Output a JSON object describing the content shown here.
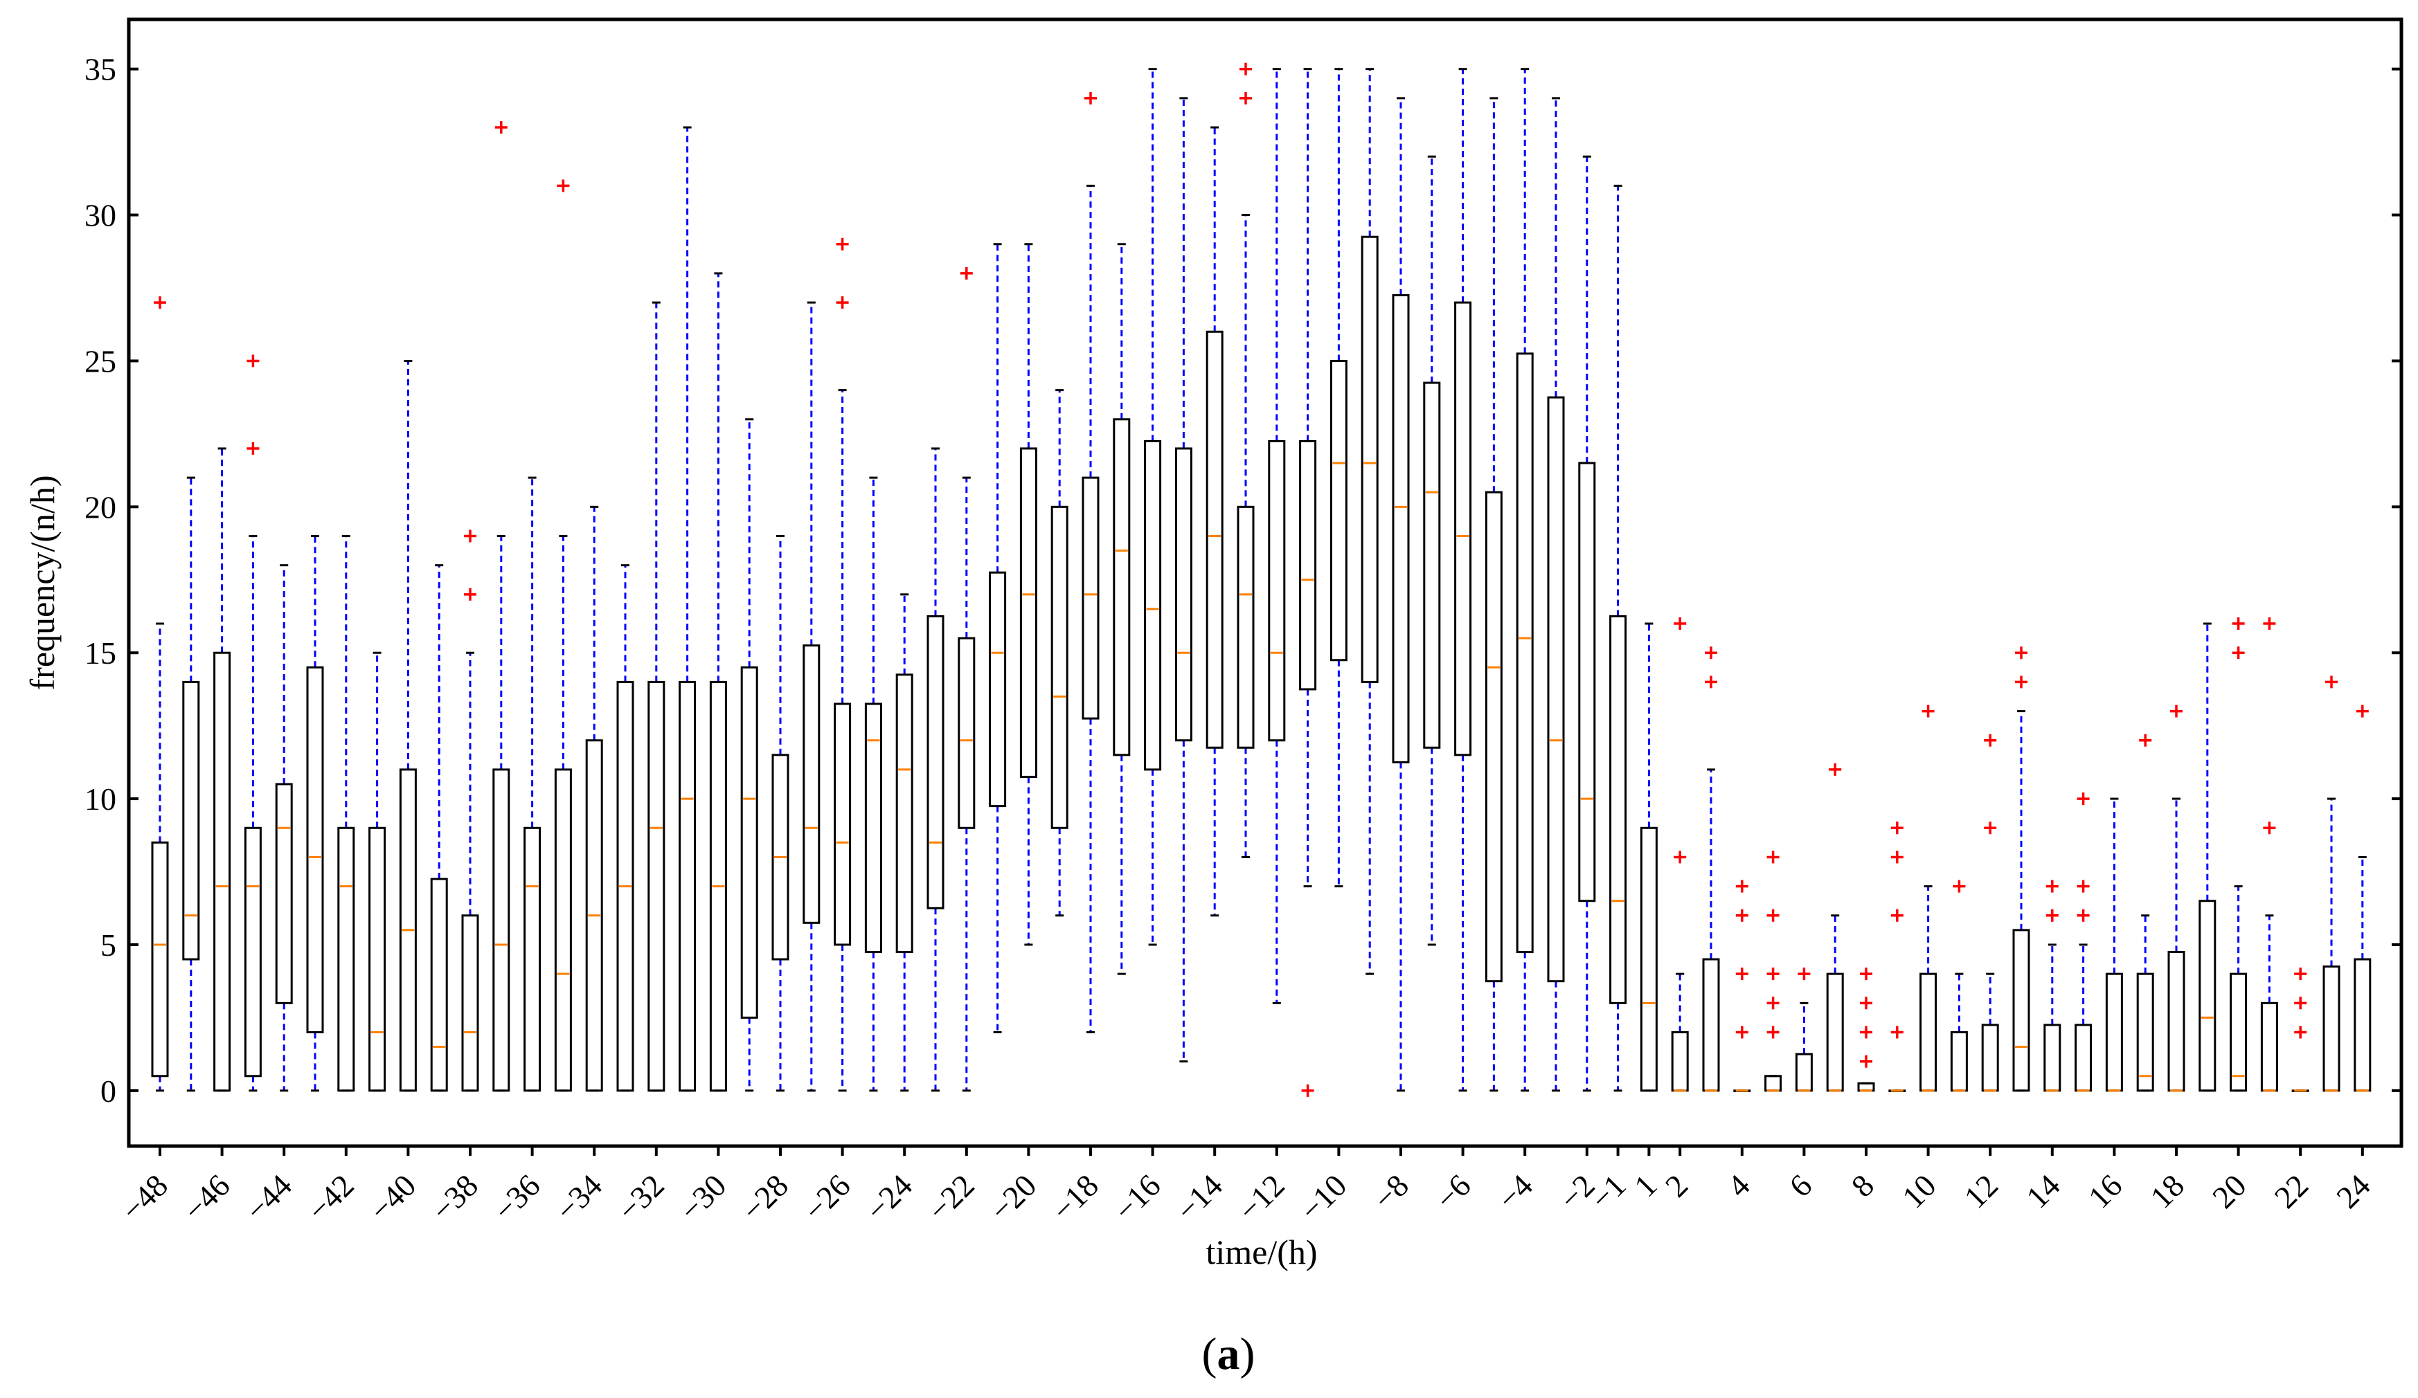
{
  "panel_label": {
    "open": "(",
    "letter": "a",
    "close": ")"
  },
  "chart_data": {
    "type": "box",
    "xlabel": "time/(h)",
    "ylabel": "frequency/(n/h)",
    "ylim": [
      -1.9,
      36.7
    ],
    "yticks": [
      0,
      5,
      10,
      15,
      20,
      25,
      30,
      35
    ],
    "xtick_labels": [
      "−48",
      "−46",
      "−44",
      "−42",
      "−40",
      "−38",
      "−36",
      "−34",
      "−32",
      "−30",
      "−28",
      "−26",
      "−24",
      "−22",
      "−20",
      "−18",
      "−16",
      "−14",
      "−12",
      "−10",
      "−8",
      "−6",
      "−4",
      "−2",
      "−1",
      "1",
      "2",
      "4",
      "6",
      "8",
      "10",
      "12",
      "14",
      "16",
      "18",
      "20",
      "22",
      "24"
    ],
    "xtick_times": [
      -48,
      -46,
      -44,
      -42,
      -40,
      -38,
      -36,
      -34,
      -32,
      -30,
      -28,
      -26,
      -24,
      -22,
      -20,
      -18,
      -16,
      -14,
      -12,
      -10,
      -8,
      -6,
      -4,
      -2,
      -1,
      1,
      2,
      4,
      6,
      8,
      10,
      12,
      14,
      16,
      18,
      20,
      22,
      24
    ],
    "colors": {
      "box": "#000000",
      "whisker": "#0000ff",
      "median": "#ff8000",
      "outlier": "#ff0000"
    },
    "boxes": [
      {
        "time": -48,
        "q1": 0.5,
        "median": 5,
        "q3": 8.5,
        "whisker_low": 0,
        "whisker_high": 16,
        "outliers": [
          27
        ]
      },
      {
        "time": -47,
        "q1": 4.5,
        "median": 6,
        "q3": 14,
        "whisker_low": 0,
        "whisker_high": 21,
        "outliers": []
      },
      {
        "time": -46,
        "q1": 0,
        "median": 7,
        "q3": 15,
        "whisker_low": 0,
        "whisker_high": 22,
        "outliers": []
      },
      {
        "time": -45,
        "q1": 0.5,
        "median": 7,
        "q3": 9,
        "whisker_low": 0,
        "whisker_high": 19,
        "outliers": [
          22,
          25
        ]
      },
      {
        "time": -44,
        "q1": 3,
        "median": 9,
        "q3": 10.5,
        "whisker_low": 0,
        "whisker_high": 18,
        "outliers": []
      },
      {
        "time": -43,
        "q1": 2,
        "median": 8,
        "q3": 14.5,
        "whisker_low": 0,
        "whisker_high": 19,
        "outliers": []
      },
      {
        "time": -42,
        "q1": 0,
        "median": 7,
        "q3": 9,
        "whisker_low": 0,
        "whisker_high": 19,
        "outliers": []
      },
      {
        "time": -41,
        "q1": 0,
        "median": 2,
        "q3": 9,
        "whisker_low": 0,
        "whisker_high": 15,
        "outliers": []
      },
      {
        "time": -40,
        "q1": 0,
        "median": 5.5,
        "q3": 11,
        "whisker_low": 0,
        "whisker_high": 25,
        "outliers": []
      },
      {
        "time": -39,
        "q1": 0,
        "median": 1.5,
        "q3": 7.25,
        "whisker_low": 0,
        "whisker_high": 18,
        "outliers": []
      },
      {
        "time": -38,
        "q1": 0,
        "median": 2,
        "q3": 6,
        "whisker_low": 0,
        "whisker_high": 15,
        "outliers": [
          17,
          19
        ]
      },
      {
        "time": -37,
        "q1": 0,
        "median": 5,
        "q3": 11,
        "whisker_low": 0,
        "whisker_high": 19,
        "outliers": [
          33
        ]
      },
      {
        "time": -36,
        "q1": 0,
        "median": 7,
        "q3": 9,
        "whisker_low": 0,
        "whisker_high": 21,
        "outliers": []
      },
      {
        "time": -35,
        "q1": 0,
        "median": 4,
        "q3": 11,
        "whisker_low": 0,
        "whisker_high": 19,
        "outliers": [
          31
        ]
      },
      {
        "time": -34,
        "q1": 0,
        "median": 6,
        "q3": 12,
        "whisker_low": 0,
        "whisker_high": 20,
        "outliers": []
      },
      {
        "time": -33,
        "q1": 0,
        "median": 7,
        "q3": 14,
        "whisker_low": 0,
        "whisker_high": 18,
        "outliers": []
      },
      {
        "time": -32,
        "q1": 0,
        "median": 9,
        "q3": 14,
        "whisker_low": 0,
        "whisker_high": 27,
        "outliers": []
      },
      {
        "time": -31,
        "q1": 0,
        "median": 10,
        "q3": 14,
        "whisker_low": 0,
        "whisker_high": 33,
        "outliers": []
      },
      {
        "time": -30,
        "q1": 0,
        "median": 7,
        "q3": 14,
        "whisker_low": 0,
        "whisker_high": 28,
        "outliers": []
      },
      {
        "time": -29,
        "q1": 2.5,
        "median": 10,
        "q3": 14.5,
        "whisker_low": 0,
        "whisker_high": 23,
        "outliers": []
      },
      {
        "time": -28,
        "q1": 4.5,
        "median": 8,
        "q3": 11.5,
        "whisker_low": 0,
        "whisker_high": 19,
        "outliers": []
      },
      {
        "time": -27,
        "q1": 5.75,
        "median": 9,
        "q3": 15.25,
        "whisker_low": 0,
        "whisker_high": 27,
        "outliers": []
      },
      {
        "time": -26,
        "q1": 5,
        "median": 8.5,
        "q3": 13.25,
        "whisker_low": 0,
        "whisker_high": 24,
        "outliers": [
          27,
          29
        ]
      },
      {
        "time": -25,
        "q1": 4.75,
        "median": 12,
        "q3": 13.25,
        "whisker_low": 0,
        "whisker_high": 21,
        "outliers": []
      },
      {
        "time": -24,
        "q1": 4.75,
        "median": 11,
        "q3": 14.25,
        "whisker_low": 0,
        "whisker_high": 17,
        "outliers": []
      },
      {
        "time": -23,
        "q1": 6.25,
        "median": 8.5,
        "q3": 16.25,
        "whisker_low": 0,
        "whisker_high": 22,
        "outliers": []
      },
      {
        "time": -22,
        "q1": 9,
        "median": 12,
        "q3": 15.5,
        "whisker_low": 0,
        "whisker_high": 21,
        "outliers": [
          28
        ]
      },
      {
        "time": -21,
        "q1": 9.75,
        "median": 15,
        "q3": 17.75,
        "whisker_low": 2,
        "whisker_high": 29,
        "outliers": []
      },
      {
        "time": -20,
        "q1": 10.75,
        "median": 17,
        "q3": 22,
        "whisker_low": 5,
        "whisker_high": 29,
        "outliers": []
      },
      {
        "time": -19,
        "q1": 9,
        "median": 13.5,
        "q3": 20,
        "whisker_low": 6,
        "whisker_high": 24,
        "outliers": []
      },
      {
        "time": -18,
        "q1": 12.75,
        "median": 17,
        "q3": 21,
        "whisker_low": 2,
        "whisker_high": 31,
        "outliers": [
          34
        ]
      },
      {
        "time": -17,
        "q1": 11.5,
        "median": 18.5,
        "q3": 23,
        "whisker_low": 4,
        "whisker_high": 29,
        "outliers": []
      },
      {
        "time": -16,
        "q1": 11,
        "median": 16.5,
        "q3": 22.25,
        "whisker_low": 5,
        "whisker_high": 35,
        "outliers": []
      },
      {
        "time": -15,
        "q1": 12,
        "median": 15,
        "q3": 22,
        "whisker_low": 1,
        "whisker_high": 34,
        "outliers": []
      },
      {
        "time": -14,
        "q1": 11.75,
        "median": 19,
        "q3": 26,
        "whisker_low": 6,
        "whisker_high": 33,
        "outliers": []
      },
      {
        "time": -13,
        "q1": 11.75,
        "median": 17,
        "q3": 20,
        "whisker_low": 8,
        "whisker_high": 30,
        "outliers": [
          34,
          35
        ]
      },
      {
        "time": -12,
        "q1": 12,
        "median": 15,
        "q3": 22.25,
        "whisker_low": 3,
        "whisker_high": 35,
        "outliers": []
      },
      {
        "time": -11,
        "q1": 13.75,
        "median": 17.5,
        "q3": 22.25,
        "whisker_low": 7,
        "whisker_high": 35,
        "outliers": [
          0
        ]
      },
      {
        "time": -10,
        "q1": 14.75,
        "median": 21.5,
        "q3": 25,
        "whisker_low": 7,
        "whisker_high": 35,
        "outliers": []
      },
      {
        "time": -9,
        "q1": 14,
        "median": 21.5,
        "q3": 29.25,
        "whisker_low": 4,
        "whisker_high": 35,
        "outliers": []
      },
      {
        "time": -8,
        "q1": 11.25,
        "median": 20,
        "q3": 27.25,
        "whisker_low": 0,
        "whisker_high": 34,
        "outliers": []
      },
      {
        "time": -7,
        "q1": 11.75,
        "median": 20.5,
        "q3": 24.25,
        "whisker_low": 5,
        "whisker_high": 32,
        "outliers": []
      },
      {
        "time": -6,
        "q1": 11.5,
        "median": 19,
        "q3": 27,
        "whisker_low": 0,
        "whisker_high": 35,
        "outliers": []
      },
      {
        "time": -5,
        "q1": 3.75,
        "median": 14.5,
        "q3": 20.5,
        "whisker_low": 0,
        "whisker_high": 34,
        "outliers": []
      },
      {
        "time": -4,
        "q1": 4.75,
        "median": 15.5,
        "q3": 25.25,
        "whisker_low": 0,
        "whisker_high": 35,
        "outliers": []
      },
      {
        "time": -3,
        "q1": 3.75,
        "median": 12,
        "q3": 23.75,
        "whisker_low": 0,
        "whisker_high": 34,
        "outliers": []
      },
      {
        "time": -2,
        "q1": 6.5,
        "median": 10,
        "q3": 21.5,
        "whisker_low": 0,
        "whisker_high": 32,
        "outliers": []
      },
      {
        "time": -1,
        "q1": 3,
        "median": 6.5,
        "q3": 16.25,
        "whisker_low": 0,
        "whisker_high": 31,
        "outliers": []
      },
      {
        "time": 1,
        "q1": 0,
        "median": 3,
        "q3": 9,
        "whisker_low": 0,
        "whisker_high": 16,
        "outliers": []
      },
      {
        "time": 2,
        "q1": 0,
        "median": 0,
        "q3": 2,
        "whisker_low": 0,
        "whisker_high": 4,
        "outliers": [
          8,
          16
        ]
      },
      {
        "time": 3,
        "q1": 0,
        "median": 0,
        "q3": 4.5,
        "whisker_low": 0,
        "whisker_high": 11,
        "outliers": [
          14,
          15
        ]
      },
      {
        "time": 4,
        "q1": 0,
        "median": 0,
        "q3": 0,
        "whisker_low": 0,
        "whisker_high": 0,
        "outliers": [
          2,
          4,
          6,
          7
        ]
      },
      {
        "time": 5,
        "q1": 0,
        "median": 0,
        "q3": 0.5,
        "whisker_low": 0,
        "whisker_high": 0.5,
        "outliers": [
          2,
          3,
          4,
          6,
          8
        ]
      },
      {
        "time": 6,
        "q1": 0,
        "median": 0,
        "q3": 1.25,
        "whisker_low": 0,
        "whisker_high": 3,
        "outliers": [
          4
        ]
      },
      {
        "time": 7,
        "q1": 0,
        "median": 0,
        "q3": 4,
        "whisker_low": 0,
        "whisker_high": 6,
        "outliers": [
          11
        ]
      },
      {
        "time": 8,
        "q1": 0,
        "median": 0,
        "q3": 0.25,
        "whisker_low": 0,
        "whisker_high": 0.25,
        "outliers": [
          1,
          2,
          3,
          4
        ]
      },
      {
        "time": 9,
        "q1": 0,
        "median": 0,
        "q3": 0,
        "whisker_low": 0,
        "whisker_high": 0,
        "outliers": [
          2,
          6,
          8,
          9
        ]
      },
      {
        "time": 10,
        "q1": 0,
        "median": 0,
        "q3": 4,
        "whisker_low": 0,
        "whisker_high": 7,
        "outliers": [
          13
        ]
      },
      {
        "time": 11,
        "q1": 0,
        "median": 0,
        "q3": 2,
        "whisker_low": 0,
        "whisker_high": 4,
        "outliers": [
          7
        ]
      },
      {
        "time": 12,
        "q1": 0,
        "median": 0,
        "q3": 2.25,
        "whisker_low": 0,
        "whisker_high": 4,
        "outliers": [
          9,
          12
        ]
      },
      {
        "time": 13,
        "q1": 0,
        "median": 1.5,
        "q3": 5.5,
        "whisker_low": 0,
        "whisker_high": 13,
        "outliers": [
          14,
          15
        ]
      },
      {
        "time": 14,
        "q1": 0,
        "median": 0,
        "q3": 2.25,
        "whisker_low": 0,
        "whisker_high": 5,
        "outliers": [
          6,
          7
        ]
      },
      {
        "time": 15,
        "q1": 0,
        "median": 0,
        "q3": 2.25,
        "whisker_low": 0,
        "whisker_high": 5,
        "outliers": [
          6,
          7,
          10
        ]
      },
      {
        "time": 16,
        "q1": 0,
        "median": 0,
        "q3": 4,
        "whisker_low": 0,
        "whisker_high": 10,
        "outliers": []
      },
      {
        "time": 17,
        "q1": 0,
        "median": 0.5,
        "q3": 4,
        "whisker_low": 0,
        "whisker_high": 6,
        "outliers": [
          12
        ]
      },
      {
        "time": 18,
        "q1": 0,
        "median": 0,
        "q3": 4.75,
        "whisker_low": 0,
        "whisker_high": 10,
        "outliers": [
          13
        ]
      },
      {
        "time": 19,
        "q1": 0,
        "median": 2.5,
        "q3": 6.5,
        "whisker_low": 0,
        "whisker_high": 16,
        "outliers": []
      },
      {
        "time": 20,
        "q1": 0,
        "median": 0.5,
        "q3": 4,
        "whisker_low": 0,
        "whisker_high": 7,
        "outliers": [
          15,
          16
        ]
      },
      {
        "time": 21,
        "q1": 0,
        "median": 0,
        "q3": 3,
        "whisker_low": 0,
        "whisker_high": 6,
        "outliers": [
          9,
          16
        ]
      },
      {
        "time": 22,
        "q1": 0,
        "median": 0,
        "q3": 0,
        "whisker_low": 0,
        "whisker_high": 0,
        "outliers": [
          2,
          3,
          4
        ]
      },
      {
        "time": 23,
        "q1": 0,
        "median": 0,
        "q3": 4.25,
        "whisker_low": 0,
        "whisker_high": 10,
        "outliers": [
          14
        ]
      },
      {
        "time": 24,
        "q1": 0,
        "median": 0,
        "q3": 4.5,
        "whisker_low": 0,
        "whisker_high": 8,
        "outliers": [
          13
        ]
      }
    ]
  }
}
